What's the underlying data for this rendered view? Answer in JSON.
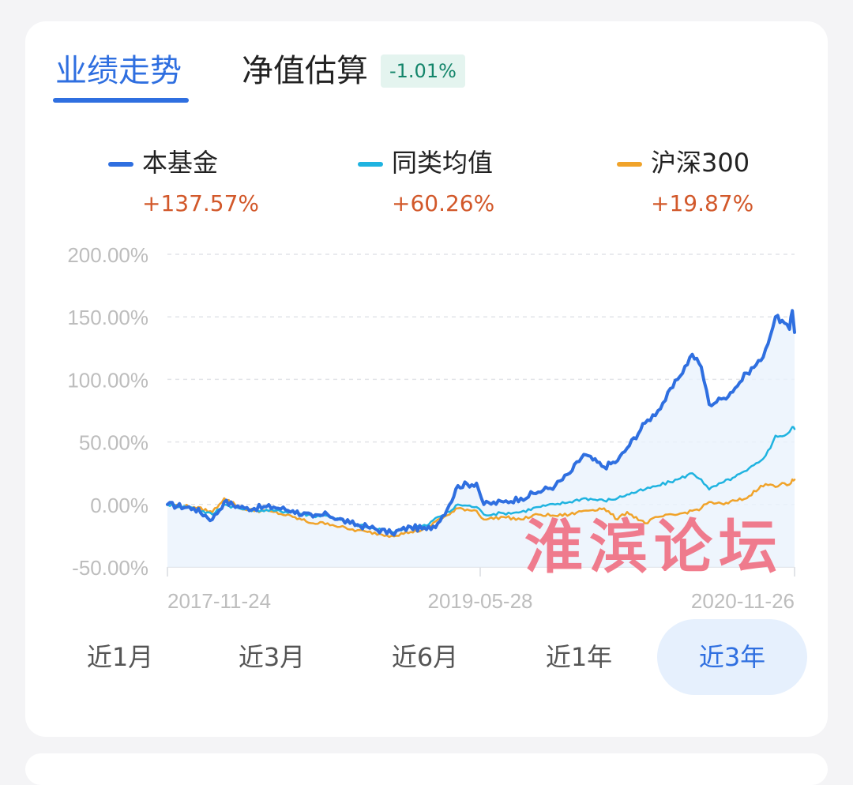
{
  "tabs": {
    "performance": "业绩走势",
    "nav_estimate": "净值估算",
    "nav_estimate_change": "-1.01%"
  },
  "legend": [
    {
      "name": "本基金",
      "value": "+137.57%",
      "color": "#2f6fe0"
    },
    {
      "name": "同类均值",
      "value": "+60.26%",
      "color": "#1fb3e0"
    },
    {
      "name": "沪深300",
      "value": "+19.87%",
      "color": "#f0a32a"
    }
  ],
  "chart_data": {
    "type": "line",
    "x_tick_labels": [
      "2017-11-24",
      "2019-05-28",
      "2020-11-26"
    ],
    "y_tick_labels": [
      "200.00%",
      "150.00%",
      "100.00%",
      "50.00%",
      "0.00%",
      "-50.00%"
    ],
    "y_ticks": [
      200,
      150,
      100,
      50,
      0,
      -50
    ],
    "ylim": [
      -50,
      200
    ],
    "xlim": [
      "2017-11-24",
      "2020-12-14"
    ],
    "grid": true,
    "fill_under_first_series": true,
    "series": [
      {
        "name": "本基金",
        "color": "#2f6fe0",
        "points": [
          [
            "2017-11-24",
            0
          ],
          [
            "2018-01-10",
            -3
          ],
          [
            "2018-02-12",
            -12
          ],
          [
            "2018-03-05",
            2
          ],
          [
            "2018-04-10",
            -3
          ],
          [
            "2018-06-01",
            -2
          ],
          [
            "2018-07-05",
            -5
          ],
          [
            "2018-08-10",
            -10
          ],
          [
            "2018-09-05",
            -8
          ],
          [
            "2018-10-15",
            -15
          ],
          [
            "2018-11-15",
            -18
          ],
          [
            "2018-12-28",
            -23
          ],
          [
            "2019-01-31",
            -18
          ],
          [
            "2019-02-28",
            -20
          ],
          [
            "2019-03-20",
            -15
          ],
          [
            "2019-04-10",
            0
          ],
          [
            "2019-04-25",
            15
          ],
          [
            "2019-05-28",
            17
          ],
          [
            "2019-06-10",
            0
          ],
          [
            "2019-07-15",
            2
          ],
          [
            "2019-08-15",
            5
          ],
          [
            "2019-09-15",
            10
          ],
          [
            "2019-10-15",
            15
          ],
          [
            "2019-11-10",
            25
          ],
          [
            "2019-12-05",
            40
          ],
          [
            "2020-01-10",
            30
          ],
          [
            "2020-02-03",
            35
          ],
          [
            "2020-02-20",
            45
          ],
          [
            "2020-03-23",
            65
          ],
          [
            "2020-04-15",
            75
          ],
          [
            "2020-05-20",
            100
          ],
          [
            "2020-06-15",
            120
          ],
          [
            "2020-07-01",
            110
          ],
          [
            "2020-07-15",
            80
          ],
          [
            "2020-08-10",
            85
          ],
          [
            "2020-08-30",
            93
          ],
          [
            "2020-09-20",
            105
          ],
          [
            "2020-10-15",
            115
          ],
          [
            "2020-11-01",
            135
          ],
          [
            "2020-11-10",
            150
          ],
          [
            "2020-11-26",
            145
          ],
          [
            "2020-12-05",
            140
          ],
          [
            "2020-12-10",
            155
          ],
          [
            "2020-12-14",
            137.57
          ]
        ]
      },
      {
        "name": "同类均值",
        "color": "#1fb3e0",
        "points": [
          [
            "2017-11-24",
            0
          ],
          [
            "2018-01-10",
            -3
          ],
          [
            "2018-02-12",
            -8
          ],
          [
            "2018-03-05",
            0
          ],
          [
            "2018-04-10",
            -4
          ],
          [
            "2018-06-01",
            -5
          ],
          [
            "2018-07-05",
            -6
          ],
          [
            "2018-08-10",
            -9
          ],
          [
            "2018-09-05",
            -9
          ],
          [
            "2018-10-15",
            -15
          ],
          [
            "2018-11-15",
            -18
          ],
          [
            "2018-12-28",
            -22
          ],
          [
            "2019-01-31",
            -18
          ],
          [
            "2019-02-28",
            -17
          ],
          [
            "2019-03-20",
            -10
          ],
          [
            "2019-04-10",
            -6
          ],
          [
            "2019-04-25",
            0
          ],
          [
            "2019-05-28",
            -2
          ],
          [
            "2019-06-10",
            -8
          ],
          [
            "2019-07-15",
            -7
          ],
          [
            "2019-08-15",
            -6
          ],
          [
            "2019-09-15",
            -2
          ],
          [
            "2019-10-15",
            0
          ],
          [
            "2019-11-10",
            2
          ],
          [
            "2019-12-05",
            5
          ],
          [
            "2020-01-10",
            3
          ],
          [
            "2020-02-03",
            5
          ],
          [
            "2020-02-20",
            8
          ],
          [
            "2020-03-23",
            12
          ],
          [
            "2020-04-15",
            15
          ],
          [
            "2020-05-20",
            20
          ],
          [
            "2020-06-15",
            25
          ],
          [
            "2020-07-01",
            20
          ],
          [
            "2020-07-15",
            12
          ],
          [
            "2020-08-10",
            18
          ],
          [
            "2020-08-30",
            22
          ],
          [
            "2020-09-20",
            27
          ],
          [
            "2020-10-15",
            35
          ],
          [
            "2020-11-01",
            45
          ],
          [
            "2020-11-10",
            55
          ],
          [
            "2020-11-26",
            55
          ],
          [
            "2020-12-05",
            58
          ],
          [
            "2020-12-10",
            62
          ],
          [
            "2020-12-14",
            60.26
          ]
        ]
      },
      {
        "name": "沪深300",
        "color": "#f0a32a",
        "points": [
          [
            "2017-11-24",
            0
          ],
          [
            "2018-01-10",
            -2
          ],
          [
            "2018-02-12",
            -6
          ],
          [
            "2018-03-05",
            5
          ],
          [
            "2018-04-10",
            -4
          ],
          [
            "2018-06-01",
            -6
          ],
          [
            "2018-07-05",
            -10
          ],
          [
            "2018-08-10",
            -15
          ],
          [
            "2018-09-05",
            -15
          ],
          [
            "2018-10-15",
            -20
          ],
          [
            "2018-11-15",
            -22
          ],
          [
            "2018-12-28",
            -25
          ],
          [
            "2019-01-31",
            -22
          ],
          [
            "2019-02-28",
            -20
          ],
          [
            "2019-03-20",
            -12
          ],
          [
            "2019-04-10",
            -8
          ],
          [
            "2019-04-25",
            -3
          ],
          [
            "2019-05-28",
            -5
          ],
          [
            "2019-06-10",
            -12
          ],
          [
            "2019-07-15",
            -10
          ],
          [
            "2019-08-15",
            -12
          ],
          [
            "2019-09-15",
            -8
          ],
          [
            "2019-10-15",
            -9
          ],
          [
            "2019-11-10",
            -8
          ],
          [
            "2019-12-05",
            -5
          ],
          [
            "2020-01-10",
            -3
          ],
          [
            "2020-02-03",
            -12
          ],
          [
            "2020-02-20",
            -6
          ],
          [
            "2020-03-23",
            -15
          ],
          [
            "2020-04-15",
            -10
          ],
          [
            "2020-05-20",
            -8
          ],
          [
            "2020-06-15",
            -5
          ],
          [
            "2020-07-01",
            -3
          ],
          [
            "2020-07-15",
            2
          ],
          [
            "2020-08-10",
            0
          ],
          [
            "2020-08-30",
            3
          ],
          [
            "2020-09-20",
            5
          ],
          [
            "2020-10-15",
            15
          ],
          [
            "2020-11-01",
            16
          ],
          [
            "2020-11-10",
            14
          ],
          [
            "2020-11-26",
            17
          ],
          [
            "2020-12-05",
            16
          ],
          [
            "2020-12-10",
            20
          ],
          [
            "2020-12-14",
            19.87
          ]
        ]
      }
    ]
  },
  "range_buttons": [
    "近1月",
    "近3月",
    "近6月",
    "近1年",
    "近3年"
  ],
  "active_range": "近3年",
  "watermark": "淮滨论坛"
}
